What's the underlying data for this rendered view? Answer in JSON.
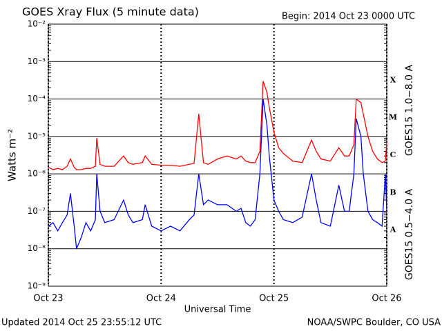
{
  "chart_data": {
    "type": "line",
    "title": "GOES Xray Flux (5 minute data)",
    "subtitle": "Begin:  2014 Oct 23 0000 UTC",
    "xlabel": "Universal Time",
    "ylabel": "Watts m⁻²",
    "footer_left": "Updated 2014 Oct 25 23:55:12 UTC",
    "footer_right": "NOAA/SWPC Boulder, CO USA",
    "log_scale": true,
    "grid": true,
    "legend": "right",
    "flare_classes": [
      "A",
      "B",
      "C",
      "M",
      "X"
    ],
    "xlim": [
      0,
      72
    ],
    "xticks": [
      {
        "value": 0,
        "label": "Oct 23"
      },
      {
        "value": 24,
        "label": "Oct 24"
      },
      {
        "value": 48,
        "label": "Oct 25"
      },
      {
        "value": 72,
        "label": "Oct 26"
      }
    ],
    "ylim": [
      1e-09,
      0.01
    ],
    "yticks": [
      {
        "value": 1e-09,
        "label": "10⁻⁹"
      },
      {
        "value": 1e-08,
        "label": "10⁻⁸"
      },
      {
        "value": 1e-07,
        "label": "10⁻⁷"
      },
      {
        "value": 1e-06,
        "label": "10⁻⁶"
      },
      {
        "value": 1e-05,
        "label": "10⁻⁵"
      },
      {
        "value": 0.0001,
        "label": "10⁻⁴"
      },
      {
        "value": 0.001,
        "label": "10⁻³"
      },
      {
        "value": 0.01,
        "label": "10⁻²"
      }
    ],
    "x": [
      0,
      1,
      2,
      3,
      4,
      4.7,
      5.5,
      6,
      7,
      8,
      9,
      10,
      10.3,
      11,
      12,
      14,
      16,
      17,
      18,
      20,
      20.6,
      22,
      24,
      26,
      28,
      30,
      31,
      32,
      33,
      34,
      36,
      38,
      40,
      41,
      42,
      43,
      44,
      45,
      45.7,
      46.5,
      47,
      48,
      49,
      50,
      52,
      54,
      56,
      57,
      58,
      60,
      61.8,
      63,
      64,
      65,
      65.5,
      66.5,
      67,
      68,
      69,
      70,
      71,
      71.7,
      72
    ],
    "series": [
      {
        "name": "GOES15 1.0−8.0 A",
        "color": "#ff0000",
        "values": [
          1.5e-06,
          1.3e-06,
          1.4e-06,
          1.3e-06,
          1.6e-06,
          2.5e-06,
          1.5e-06,
          1.3e-06,
          1.3e-06,
          1.4e-06,
          1.4e-06,
          1.6e-06,
          9e-06,
          1.8e-06,
          1.6e-06,
          1.6e-06,
          3e-06,
          2e-06,
          1.8e-06,
          2e-06,
          3e-06,
          1.8e-06,
          1.7e-06,
          1.7e-06,
          1.6e-06,
          1.8e-06,
          1.9e-06,
          4e-05,
          2e-06,
          1.8e-06,
          2.5e-06,
          3e-06,
          2.5e-06,
          3e-06,
          2.2e-06,
          2e-06,
          2e-06,
          4e-06,
          0.0003,
          0.00015,
          6e-05,
          1.3e-05,
          5e-06,
          3.5e-06,
          2.2e-06,
          2e-06,
          8e-06,
          4e-06,
          2.5e-06,
          2.2e-06,
          5e-06,
          3e-06,
          3e-06,
          6e-06,
          0.0001,
          8e-05,
          4e-05,
          1e-05,
          4e-06,
          2.5e-06,
          2e-06,
          2.2e-06,
          7e-06
        ]
      },
      {
        "name": "GOES15 0.5−4.0 A",
        "color": "#0000ff",
        "values": [
          4e-08,
          5e-08,
          3e-08,
          5e-08,
          8e-08,
          3e-07,
          4e-08,
          1e-08,
          2e-08,
          5e-08,
          3e-08,
          6e-08,
          1e-06,
          1e-07,
          5e-08,
          6e-08,
          2e-07,
          8e-08,
          5e-08,
          6e-08,
          1.5e-07,
          4e-08,
          3e-08,
          4e-08,
          3e-08,
          6e-08,
          8e-08,
          1e-06,
          1.5e-07,
          2e-07,
          1.5e-07,
          1.5e-07,
          1e-07,
          1.2e-07,
          5e-08,
          4e-08,
          6e-08,
          1e-06,
          0.0001,
          2e-05,
          3e-06,
          2e-07,
          1e-07,
          6e-08,
          5e-08,
          7e-08,
          1e-06,
          2e-07,
          5e-08,
          4e-08,
          5e-07,
          1e-07,
          1e-07,
          1e-06,
          3e-05,
          1e-05,
          1e-06,
          1e-07,
          6e-08,
          5e-08,
          4e-08,
          1e-06,
          1e-07
        ]
      }
    ]
  }
}
